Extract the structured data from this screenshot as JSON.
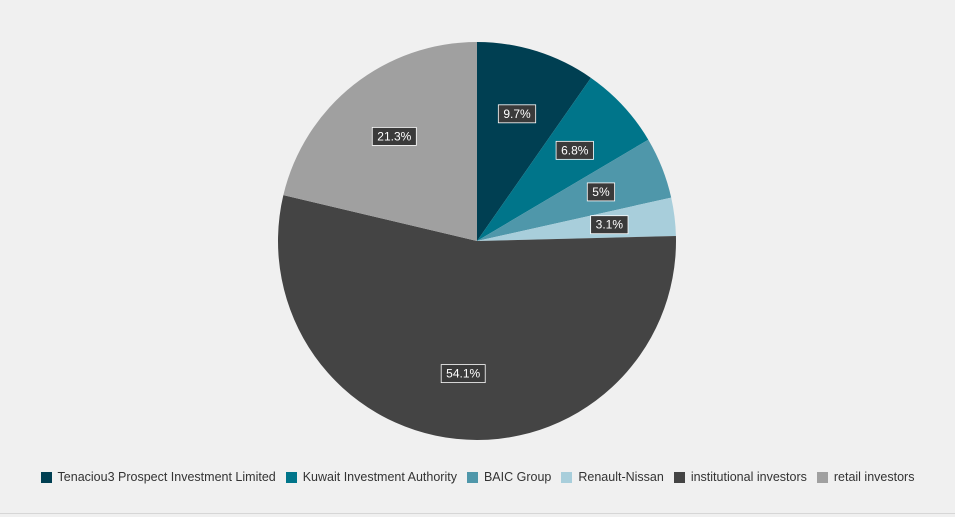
{
  "chart_data": {
    "type": "pie",
    "title": "",
    "legend_position": "bottom",
    "slices": [
      {
        "name": "Tenaciou3 Prospect Investment Limited",
        "value": 9.7,
        "label": "9.7%",
        "color": "#003f52"
      },
      {
        "name": "Kuwait Investment Authority",
        "value": 6.8,
        "label": "6.8%",
        "color": "#00758a"
      },
      {
        "name": "BAIC Group",
        "value": 5,
        "label": "5%",
        "color": "#4f97aa"
      },
      {
        "name": "Renault-Nissan",
        "value": 3.1,
        "label": "3.1%",
        "color": "#a8cedb"
      },
      {
        "name": "institutional investors",
        "value": 54.1,
        "label": "54.1%",
        "color": "#444444"
      },
      {
        "name": "retail investors",
        "value": 21.3,
        "label": "21.3%",
        "color": "#a0a0a0"
      }
    ]
  }
}
